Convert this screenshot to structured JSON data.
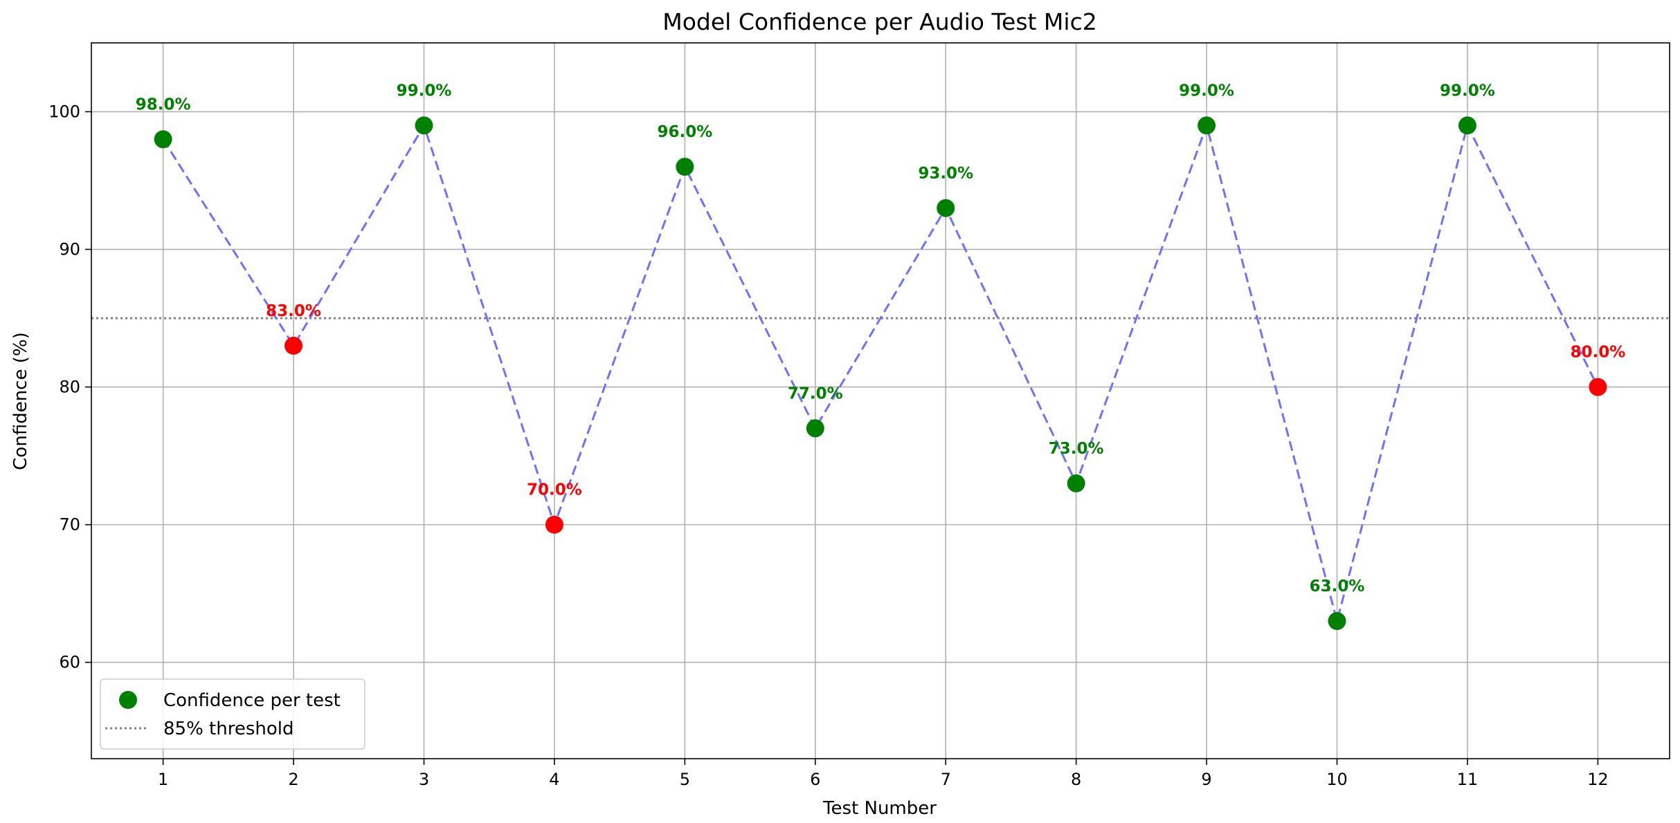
{
  "chart_data": {
    "type": "scatter",
    "title": "Model Confidence per Audio Test Mic2",
    "xlabel": "Test Number",
    "ylabel": "Confidence (%)",
    "x": [
      1,
      2,
      3,
      4,
      5,
      6,
      7,
      8,
      9,
      10,
      11,
      12
    ],
    "x_ticks": [
      "1",
      "2",
      "3",
      "4",
      "5",
      "6",
      "7",
      "8",
      "9",
      "10",
      "11",
      "12"
    ],
    "values": [
      98,
      83,
      99,
      70,
      96,
      77,
      93,
      73,
      99,
      63,
      99,
      80
    ],
    "point_colors": [
      "#008000",
      "#ff0000",
      "#008000",
      "#ff0000",
      "#008000",
      "#008000",
      "#008000",
      "#008000",
      "#008000",
      "#008000",
      "#008000",
      "#ff0000"
    ],
    "data_labels": [
      "98.0%",
      "83.0%",
      "99.0%",
      "70.0%",
      "96.0%",
      "77.0%",
      "93.0%",
      "73.0%",
      "99.0%",
      "63.0%",
      "99.0%",
      "80.0%"
    ],
    "label_colors": [
      "#008000",
      "#ff0000",
      "#008000",
      "#ff0000",
      "#008000",
      "#008000",
      "#008000",
      "#008000",
      "#008000",
      "#008000",
      "#008000",
      "#ff0000"
    ],
    "xlim": [
      0.45,
      12.55
    ],
    "ylim": [
      53,
      105
    ],
    "y_ticks": [
      60,
      70,
      80,
      90,
      100
    ],
    "y_tick_labels": [
      "60",
      "70",
      "80",
      "90",
      "100"
    ],
    "threshold": 85,
    "grid": true,
    "connector_color": "#7070ff",
    "threshold_color": "#808080",
    "legend": {
      "position": "bottom-left",
      "items": [
        {
          "label": "Confidence per test",
          "kind": "marker",
          "color": "#008000"
        },
        {
          "label": "85% threshold",
          "kind": "dotted-line",
          "color": "#808080"
        }
      ]
    }
  }
}
